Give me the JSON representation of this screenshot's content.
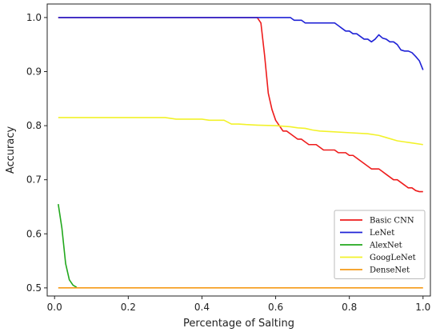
{
  "chart_data": {
    "type": "line",
    "title": "",
    "xlabel": "Percentage of Salting",
    "ylabel": "Accuracy",
    "xlim": [
      -0.02,
      1.02
    ],
    "ylim": [
      0.485,
      1.025
    ],
    "x_ticks": [
      "0.0",
      "0.2",
      "0.4",
      "0.6",
      "0.8",
      "1.0"
    ],
    "y_ticks": [
      "0.5",
      "0.6",
      "0.7",
      "0.8",
      "0.9",
      "1.0"
    ],
    "grid": false,
    "legend_position": "lower-right",
    "series": [
      {
        "name": "Basic CNN",
        "color": "#ee1c1c",
        "points": [
          [
            0.01,
            1.0
          ],
          [
            0.55,
            1.0
          ],
          [
            0.56,
            0.99
          ],
          [
            0.57,
            0.93
          ],
          [
            0.58,
            0.86
          ],
          [
            0.59,
            0.83
          ],
          [
            0.6,
            0.81
          ],
          [
            0.61,
            0.8
          ],
          [
            0.62,
            0.79
          ],
          [
            0.63,
            0.79
          ],
          [
            0.64,
            0.785
          ],
          [
            0.65,
            0.78
          ],
          [
            0.66,
            0.775
          ],
          [
            0.67,
            0.775
          ],
          [
            0.68,
            0.77
          ],
          [
            0.69,
            0.765
          ],
          [
            0.71,
            0.765
          ],
          [
            0.72,
            0.76
          ],
          [
            0.73,
            0.755
          ],
          [
            0.76,
            0.755
          ],
          [
            0.77,
            0.75
          ],
          [
            0.79,
            0.75
          ],
          [
            0.8,
            0.745
          ],
          [
            0.81,
            0.745
          ],
          [
            0.82,
            0.74
          ],
          [
            0.83,
            0.735
          ],
          [
            0.84,
            0.73
          ],
          [
            0.85,
            0.725
          ],
          [
            0.86,
            0.72
          ],
          [
            0.88,
            0.72
          ],
          [
            0.89,
            0.715
          ],
          [
            0.9,
            0.71
          ],
          [
            0.91,
            0.705
          ],
          [
            0.92,
            0.7
          ],
          [
            0.93,
            0.7
          ],
          [
            0.94,
            0.695
          ],
          [
            0.95,
            0.69
          ],
          [
            0.96,
            0.685
          ],
          [
            0.97,
            0.685
          ],
          [
            0.98,
            0.68
          ],
          [
            0.99,
            0.678
          ],
          [
            1.0,
            0.678
          ]
        ]
      },
      {
        "name": "LeNet",
        "color": "#1f22d6",
        "points": [
          [
            0.01,
            1.0
          ],
          [
            0.64,
            1.0
          ],
          [
            0.65,
            0.995
          ],
          [
            0.67,
            0.995
          ],
          [
            0.68,
            0.99
          ],
          [
            0.76,
            0.99
          ],
          [
            0.77,
            0.985
          ],
          [
            0.78,
            0.98
          ],
          [
            0.79,
            0.975
          ],
          [
            0.8,
            0.975
          ],
          [
            0.81,
            0.97
          ],
          [
            0.82,
            0.97
          ],
          [
            0.83,
            0.965
          ],
          [
            0.84,
            0.96
          ],
          [
            0.85,
            0.96
          ],
          [
            0.86,
            0.955
          ],
          [
            0.87,
            0.96
          ],
          [
            0.88,
            0.968
          ],
          [
            0.89,
            0.962
          ],
          [
            0.9,
            0.96
          ],
          [
            0.91,
            0.955
          ],
          [
            0.92,
            0.955
          ],
          [
            0.93,
            0.95
          ],
          [
            0.94,
            0.94
          ],
          [
            0.95,
            0.938
          ],
          [
            0.96,
            0.938
          ],
          [
            0.97,
            0.935
          ],
          [
            0.98,
            0.928
          ],
          [
            0.99,
            0.92
          ],
          [
            1.0,
            0.903
          ]
        ]
      },
      {
        "name": "AlexNet",
        "color": "#22a81d",
        "points": [
          [
            0.01,
            0.655
          ],
          [
            0.02,
            0.61
          ],
          [
            0.03,
            0.545
          ],
          [
            0.04,
            0.515
          ],
          [
            0.05,
            0.505
          ],
          [
            0.06,
            0.501
          ]
        ]
      },
      {
        "name": "GoogLeNet",
        "color": "#f2f22a",
        "points": [
          [
            0.01,
            0.815
          ],
          [
            0.3,
            0.815
          ],
          [
            0.33,
            0.812
          ],
          [
            0.4,
            0.812
          ],
          [
            0.42,
            0.81
          ],
          [
            0.46,
            0.81
          ],
          [
            0.48,
            0.803
          ],
          [
            0.5,
            0.803
          ],
          [
            0.52,
            0.802
          ],
          [
            0.55,
            0.801
          ],
          [
            0.6,
            0.8
          ],
          [
            0.64,
            0.798
          ],
          [
            0.66,
            0.796
          ],
          [
            0.68,
            0.795
          ],
          [
            0.7,
            0.792
          ],
          [
            0.72,
            0.79
          ],
          [
            0.75,
            0.789
          ],
          [
            0.8,
            0.787
          ],
          [
            0.85,
            0.785
          ],
          [
            0.88,
            0.782
          ],
          [
            0.9,
            0.778
          ],
          [
            0.93,
            0.772
          ],
          [
            0.95,
            0.77
          ],
          [
            0.97,
            0.768
          ],
          [
            1.0,
            0.765
          ]
        ]
      },
      {
        "name": "DenseNet",
        "color": "#f59a17",
        "points": [
          [
            0.01,
            0.5
          ],
          [
            1.0,
            0.5
          ]
        ]
      }
    ]
  }
}
